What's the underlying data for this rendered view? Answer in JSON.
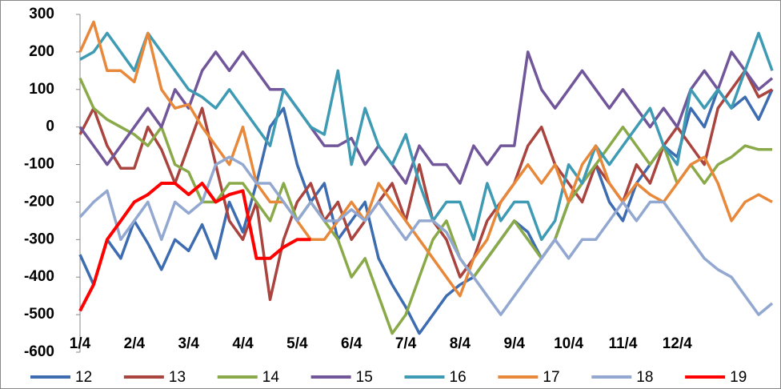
{
  "chart_data": {
    "type": "line",
    "categories": [
      "1/4",
      null,
      null,
      null,
      "2/4",
      null,
      null,
      null,
      "3/4",
      null,
      null,
      null,
      "4/4",
      null,
      null,
      null,
      "5/4",
      null,
      null,
      null,
      "6/4",
      null,
      null,
      null,
      "7/4",
      null,
      null,
      null,
      "8/4",
      null,
      null,
      null,
      "9/4",
      null,
      null,
      null,
      "10/4",
      null,
      null,
      null,
      "11/4",
      null,
      null,
      null,
      "12/4",
      null,
      null,
      null,
      null,
      null,
      null,
      null
    ],
    "ylim": [
      -600,
      300
    ],
    "yticks": [
      -600,
      -500,
      -400,
      -300,
      -200,
      -100,
      0,
      100,
      200,
      300
    ],
    "grid": false,
    "legend": "bottom",
    "series": [
      {
        "name": "12",
        "color": "#3d6cb0",
        "values": [
          -340,
          -420,
          -300,
          -350,
          -250,
          -310,
          -380,
          -300,
          -330,
          -260,
          -350,
          -200,
          -280,
          -150,
          0,
          50,
          -100,
          -200,
          -150,
          -300,
          -250,
          -200,
          -350,
          -420,
          -480,
          -550,
          -500,
          -450,
          -420,
          -400,
          -350,
          -300,
          -250,
          -280,
          -350,
          -300,
          -200,
          -150,
          -100,
          -200,
          -250,
          -150,
          -100,
          -50,
          -80,
          50,
          0,
          100,
          50,
          80,
          20,
          100
        ]
      },
      {
        "name": "13",
        "color": "#a9443f",
        "values": [
          -20,
          50,
          -50,
          -110,
          -110,
          0,
          -60,
          -150,
          -50,
          50,
          -100,
          -250,
          -300,
          -200,
          -460,
          -300,
          -200,
          -150,
          -250,
          -200,
          -300,
          -250,
          -200,
          -150,
          -250,
          -100,
          -250,
          -300,
          -400,
          -350,
          -250,
          -200,
          -150,
          -50,
          0,
          -100,
          -150,
          -200,
          -100,
          -150,
          -200,
          -100,
          -150,
          -50,
          0,
          -50,
          -100,
          50,
          100,
          150,
          80,
          100
        ]
      },
      {
        "name": "14",
        "color": "#8aaa4a",
        "values": [
          130,
          50,
          20,
          0,
          -20,
          -50,
          0,
          -100,
          -120,
          -200,
          -200,
          -150,
          -150,
          -200,
          -250,
          -150,
          -250,
          -200,
          -250,
          -300,
          -400,
          -350,
          -450,
          -550,
          -500,
          -400,
          -300,
          -250,
          -350,
          -400,
          -350,
          -300,
          -250,
          -300,
          -350,
          -300,
          -200,
          -150,
          -100,
          -50,
          0,
          -50,
          -100,
          -50,
          -150,
          -100,
          -150,
          -100,
          -80,
          -50,
          -60,
          -60
        ]
      },
      {
        "name": "15",
        "color": "#71579a",
        "values": [
          0,
          -50,
          -100,
          -50,
          0,
          50,
          0,
          100,
          50,
          150,
          200,
          150,
          200,
          150,
          100,
          100,
          50,
          0,
          -50,
          -50,
          -30,
          -100,
          -50,
          -100,
          -150,
          -50,
          -100,
          -100,
          -150,
          -50,
          -100,
          -50,
          -50,
          200,
          100,
          50,
          100,
          150,
          100,
          50,
          100,
          50,
          0,
          50,
          0,
          100,
          150,
          100,
          200,
          150,
          100,
          130
        ]
      },
      {
        "name": "16",
        "color": "#3e9bb3",
        "values": [
          180,
          200,
          250,
          200,
          150,
          250,
          200,
          150,
          100,
          80,
          50,
          100,
          50,
          0,
          -50,
          100,
          50,
          0,
          -20,
          150,
          -100,
          50,
          -50,
          -100,
          -20,
          -150,
          -250,
          -200,
          -200,
          -300,
          -150,
          -250,
          -200,
          -200,
          -300,
          -250,
          -100,
          -150,
          -50,
          -100,
          -50,
          0,
          50,
          -50,
          -100,
          100,
          50,
          100,
          50,
          150,
          250,
          150
        ]
      },
      {
        "name": "17",
        "color": "#e8883a",
        "values": [
          200,
          280,
          150,
          150,
          120,
          250,
          100,
          50,
          60,
          0,
          -50,
          -100,
          0,
          -150,
          -200,
          -200,
          -250,
          -300,
          -300,
          -250,
          -200,
          -250,
          -150,
          -200,
          -250,
          -300,
          -350,
          -400,
          -450,
          -350,
          -300,
          -200,
          -150,
          -100,
          -150,
          -100,
          -200,
          -100,
          -50,
          -150,
          -200,
          -150,
          -180,
          -200,
          -150,
          -100,
          -80,
          -150,
          -250,
          -200,
          -180,
          -200
        ]
      },
      {
        "name": "18",
        "color": "#93a8d0",
        "values": [
          -240,
          -200,
          -170,
          -300,
          -250,
          -200,
          -300,
          -200,
          -230,
          -200,
          -100,
          -80,
          -100,
          -150,
          -150,
          -200,
          -250,
          -200,
          -250,
          -250,
          -220,
          -250,
          -200,
          -250,
          -300,
          -250,
          -250,
          -280,
          -350,
          -400,
          -450,
          -500,
          -450,
          -400,
          -350,
          -300,
          -350,
          -300,
          -300,
          -250,
          -200,
          -250,
          -200,
          -200,
          -250,
          -300,
          -350,
          -380,
          -400,
          -450,
          -500,
          -470
        ]
      },
      {
        "name": "19",
        "color": "#ff0000",
        "values": [
          -490,
          -420,
          -300,
          -250,
          -200,
          -180,
          -150,
          -150,
          -180,
          -150,
          -200,
          -180,
          -170,
          -350,
          -350,
          -320,
          -300,
          -300,
          null,
          null,
          null,
          null,
          null,
          null,
          null,
          null,
          null,
          null,
          null,
          null,
          null,
          null,
          null,
          null,
          null,
          null,
          null,
          null,
          null,
          null,
          null,
          null,
          null,
          null,
          null,
          null,
          null,
          null,
          null,
          null,
          null,
          null
        ]
      }
    ]
  }
}
